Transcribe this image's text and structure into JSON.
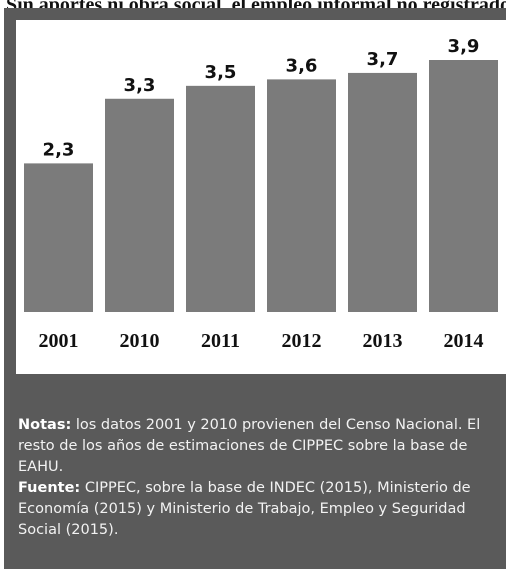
{
  "header_text": "Sin aportes ni obra social, el empleo informal no registrado del país",
  "chart_data": {
    "type": "bar",
    "categories": [
      "2001",
      "2010",
      "2011",
      "2012",
      "2013",
      "2014"
    ],
    "values": [
      2.3,
      3.3,
      3.5,
      3.6,
      3.7,
      3.9
    ],
    "value_labels": [
      "2,3",
      "3,3",
      "3,5",
      "3,6",
      "3,7",
      "3,9"
    ],
    "title": "",
    "xlabel": "",
    "ylabel": "",
    "ylim": [
      0,
      3.9
    ],
    "grid": false,
    "bar_color": "#7b7b7b"
  },
  "footer": {
    "notes_label": "Notas:",
    "notes_text": " los datos 2001 y 2010 provienen del Censo Nacional. El resto de los años de estimaciones de CIPPEC sobre la base de EAHU.",
    "source_label": "Fuente:",
    "source_text": " CIPPEC, sobre la base de INDEC (2015), Ministerio de Economía (2015) y Ministerio de Trabajo, Empleo y Seguridad Social (2015)."
  },
  "colors": {
    "background_dark": "#5a5a5a",
    "panel": "#ffffff",
    "bar": "#7b7b7b",
    "text_dark": "#111111",
    "text_light": "#f2f2f2"
  }
}
